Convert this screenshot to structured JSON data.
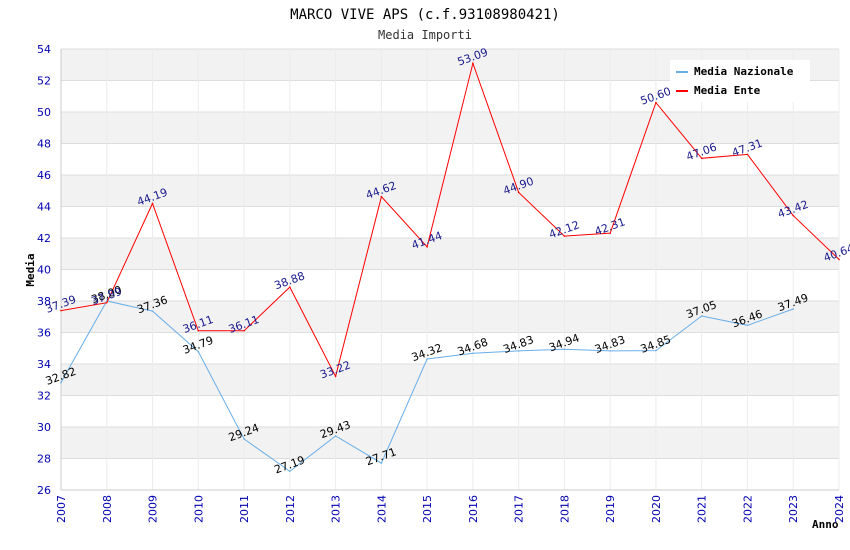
{
  "chart_data": {
    "type": "line",
    "title": "MARCO VIVE APS (c.f.93108980421)",
    "subtitle": "Media Importi",
    "xlabel": "Anno",
    "ylabel": "Media",
    "x": [
      2007,
      2008,
      2009,
      2010,
      2011,
      2012,
      2013,
      2014,
      2015,
      2016,
      2017,
      2018,
      2019,
      2020,
      2021,
      2022,
      2023,
      2024
    ],
    "ylim": [
      26,
      54
    ],
    "yticks": [
      26,
      28,
      30,
      32,
      34,
      36,
      38,
      40,
      42,
      44,
      46,
      48,
      50,
      52,
      54
    ],
    "grid": true,
    "legend_position": "top-right",
    "series": [
      {
        "name": "Media Nazionale",
        "color": "#6aaee8",
        "values": [
          32.82,
          38.0,
          37.36,
          34.79,
          29.24,
          27.19,
          29.43,
          27.71,
          34.32,
          34.68,
          34.83,
          34.94,
          34.83,
          34.85,
          37.05,
          36.46,
          37.49,
          null
        ],
        "labels": [
          "32.82",
          "38.00",
          "37.36",
          "34.79",
          "29.24",
          "27.19",
          "29.43",
          "27.71",
          "34.32",
          "34.68",
          "34.83",
          "34.94",
          "34.83",
          "34.85",
          "37.05",
          "36.46",
          "37.49",
          null
        ]
      },
      {
        "name": "Media Ente",
        "color": "#ff0000",
        "values": [
          37.39,
          37.89,
          44.19,
          36.11,
          36.11,
          38.88,
          33.22,
          44.62,
          41.44,
          53.09,
          44.9,
          42.12,
          42.31,
          50.6,
          47.06,
          47.31,
          43.42,
          40.64
        ],
        "labels": [
          "37.39",
          "37.89",
          "44.19",
          "36.11",
          "36.11",
          "38.88",
          "33.22",
          "44.62",
          "41.44",
          "53.09",
          "44.90",
          "42.12",
          "42.31",
          "50.60",
          "47.06",
          "47.31",
          "43.42",
          "40.64"
        ]
      }
    ]
  }
}
